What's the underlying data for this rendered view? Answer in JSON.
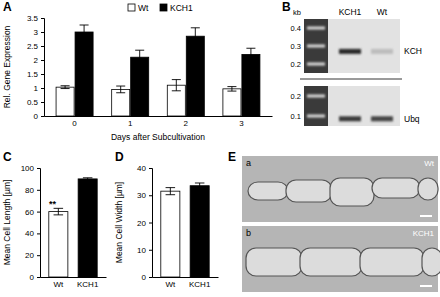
{
  "chart_data": [
    {
      "type": "bar",
      "title": "A",
      "ylabel": "Rel. Gene Expression",
      "xlabel": "Days after Subcultivation",
      "categories": [
        "0",
        "1",
        "2",
        "3"
      ],
      "series": [
        {
          "name": "Wt",
          "color": "#ffffff",
          "values": [
            1.03,
            0.95,
            1.1,
            0.97
          ],
          "errors": [
            0.05,
            0.12,
            0.2,
            0.08
          ]
        },
        {
          "name": "KCH1",
          "color": "#000000",
          "values": [
            3.0,
            2.1,
            2.85,
            2.2
          ],
          "errors": [
            0.25,
            0.25,
            0.3,
            0.22
          ]
        }
      ],
      "ylim": [
        0,
        3.5
      ],
      "yticks": [
        0,
        0.5,
        1,
        1.5,
        2,
        2.5,
        3,
        3.5
      ],
      "legend": "top"
    },
    {
      "type": "bar",
      "title": "C",
      "ylabel": "Mean Cell Length [µm]",
      "categories": [
        "Wt",
        "KCH1"
      ],
      "values": [
        60,
        90
      ],
      "errors": [
        3,
        1
      ],
      "colors": [
        "#ffffff",
        "#000000"
      ],
      "ylim": [
        0,
        100
      ],
      "yticks": [
        0,
        20,
        40,
        60,
        80,
        100
      ],
      "annotations": [
        {
          "text": "**",
          "x": "Wt"
        }
      ]
    },
    {
      "type": "bar",
      "title": "D",
      "ylabel": "Mean Cell Width [µm]",
      "categories": [
        "Wt",
        "KCH1"
      ],
      "values": [
        31.5,
        33.5
      ],
      "errors": [
        1.3,
        1
      ],
      "colors": [
        "#ffffff",
        "#000000"
      ],
      "ylim": [
        0,
        40
      ],
      "yticks": [
        0,
        10,
        20,
        30,
        40
      ]
    }
  ],
  "gel": {
    "title": "B",
    "lanes": [
      "KCH1",
      "Wt"
    ],
    "blots": [
      {
        "label": "KCH",
        "unit": "kb",
        "markers": [
          0.4,
          0.3,
          0.2
        ]
      },
      {
        "label": "Ubq",
        "markers": [
          0.2,
          0.1
        ]
      }
    ]
  },
  "micrographs": {
    "title": "E",
    "images": [
      {
        "letter": "a",
        "label": "Wt"
      },
      {
        "letter": "b",
        "label": "KCH1"
      }
    ]
  }
}
